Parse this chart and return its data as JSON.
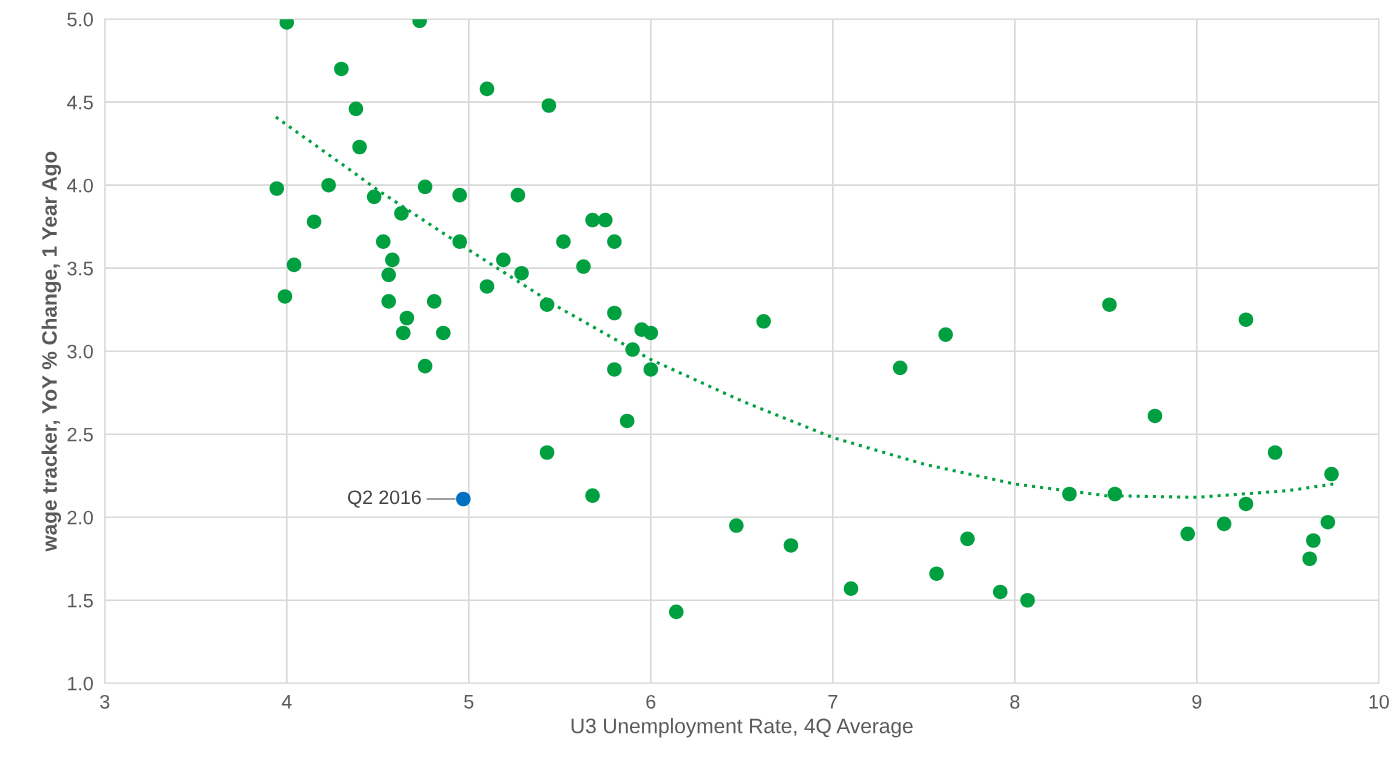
{
  "chart_data": {
    "type": "scatter",
    "xlabel": "U3 Unemployment Rate, 4Q Average",
    "ylabel": "wage tracker, YoY % Change, 1 Year Ago",
    "xlim": [
      3,
      10
    ],
    "xticks": [
      3,
      4,
      5,
      6,
      7,
      8,
      9,
      10
    ],
    "ylim": [
      1.0,
      5.0
    ],
    "yticks": [
      {
        "value": 1.0,
        "label": "1.0"
      },
      {
        "value": 1.5,
        "label": "1.5"
      },
      {
        "value": 2.0,
        "label": "2.0"
      },
      {
        "value": 2.5,
        "label": "2.5"
      },
      {
        "value": 3.0,
        "label": "3.0"
      },
      {
        "value": 3.5,
        "label": "3.5"
      },
      {
        "value": 4.0,
        "label": "4.0"
      },
      {
        "value": 4.5,
        "label": "4.5"
      },
      {
        "value": 5.0,
        "label": "5.0"
      }
    ],
    "grid": true,
    "legend": false,
    "marker": "circle",
    "series": [
      {
        "color": "#00a040",
        "x": [
          3.945,
          4.0,
          4.04,
          3.99,
          4.15,
          4.23,
          4.3,
          4.38,
          4.4,
          4.48,
          4.53,
          4.56,
          4.58,
          4.56,
          4.63,
          4.66,
          4.64,
          4.73,
          4.76,
          4.76,
          4.81,
          4.86,
          4.95,
          4.95,
          5.1,
          5.1,
          5.19,
          5.27,
          5.29,
          5.44,
          5.43,
          5.43,
          5.52,
          5.63,
          5.68,
          5.75,
          5.8,
          5.8,
          5.8,
          5.95,
          6.0,
          5.9,
          6.0,
          5.87,
          5.68,
          6.14,
          6.47,
          6.62,
          6.77,
          7.1,
          7.37,
          7.57,
          7.62,
          7.74,
          7.92,
          8.07,
          8.3,
          8.52,
          8.55,
          8.77,
          8.95,
          9.15,
          9.27,
          9.27,
          9.43,
          9.62,
          9.64,
          9.72,
          9.74
        ],
        "values": [
          3.98,
          4.98,
          3.52,
          3.33,
          3.78,
          4.0,
          4.7,
          4.46,
          4.23,
          3.93,
          3.66,
          3.46,
          3.55,
          3.3,
          3.83,
          3.2,
          3.11,
          4.99,
          3.99,
          2.91,
          3.3,
          3.11,
          3.94,
          3.66,
          4.58,
          3.39,
          3.55,
          3.94,
          3.47,
          4.48,
          3.28,
          2.39,
          3.66,
          3.51,
          3.79,
          3.79,
          3.66,
          3.23,
          2.89,
          3.13,
          3.11,
          3.01,
          2.89,
          2.58,
          2.13,
          1.43,
          1.95,
          3.18,
          1.83,
          1.57,
          2.9,
          1.66,
          3.1,
          1.87,
          1.55,
          1.5,
          2.14,
          3.28,
          2.14,
          2.61,
          1.9,
          1.96,
          3.19,
          2.08,
          2.39,
          1.75,
          1.86,
          1.97,
          2.26
        ]
      },
      {
        "color": "#0070c0",
        "x": [
          4.97
        ],
        "values": [
          2.11
        ]
      },
      {
        "type": "line",
        "color": "#00a040",
        "line_style": "dotted",
        "marker": "none",
        "x": [
          3.94,
          4.35,
          4.5,
          5.0,
          5.5,
          6.0,
          6.5,
          7.0,
          7.5,
          8.0,
          8.5,
          9.0,
          9.5,
          9.75
        ],
        "values": [
          4.41,
          4.09,
          3.97,
          3.61,
          3.26,
          2.95,
          2.7,
          2.48,
          2.32,
          2.2,
          2.13,
          2.12,
          2.16,
          2.2
        ]
      }
    ],
    "annotations": [
      {
        "text": "Q2 2016",
        "x": 4.97,
        "y": 2.11
      }
    ]
  }
}
